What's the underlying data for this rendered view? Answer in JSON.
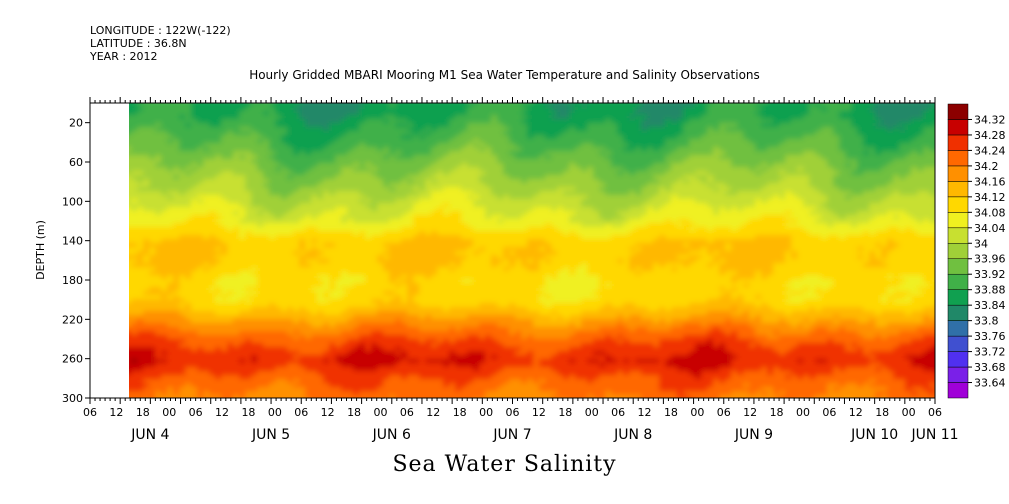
{
  "header": {
    "longitude": "LONGITUDE : 122W(-122)",
    "latitude": "LATITUDE : 36.8N",
    "year": "YEAR : 2012"
  },
  "chart_data": {
    "type": "heatmap",
    "title": "Hourly Gridded MBARI Mooring M1 Sea Water Temperature and Salinity Observations",
    "subtitle": "Sea Water Salinity",
    "ylabel": "DEPTH (m)",
    "xlabel": "",
    "ylim": [
      300,
      0
    ],
    "yticks": [
      20,
      60,
      100,
      140,
      180,
      220,
      260,
      300
    ],
    "x_hour_ticks": [
      "06",
      "12",
      "18",
      "00",
      "06",
      "12",
      "18",
      "00",
      "06",
      "12",
      "18",
      "00",
      "06",
      "12",
      "18",
      "00",
      "06",
      "12",
      "18",
      "00",
      "06",
      "12",
      "18",
      "00",
      "06",
      "12",
      "18",
      "00",
      "06",
      "12",
      "18",
      "00",
      "06"
    ],
    "x_day_labels": [
      "JUN  4",
      "JUN  5",
      "JUN  6",
      "JUN  7",
      "JUN  8",
      "JUN  9",
      "JUN 10",
      "JUN 11"
    ],
    "x_day_positions_hours": [
      12,
      36,
      60,
      84,
      108,
      132,
      156,
      168
    ],
    "x_range_hours": [
      0,
      168
    ],
    "data_start_hours": 7,
    "colorbar_levels": [
      33.64,
      33.68,
      33.72,
      33.76,
      33.8,
      33.84,
      33.88,
      33.92,
      33.96,
      34,
      34.04,
      34.08,
      34.12,
      34.16,
      34.2,
      34.24,
      34.28,
      34.32
    ],
    "colorbar_labels": [
      "34.32",
      "34.28",
      "34.24",
      "34.2",
      "34.16",
      "34.12",
      "34.08",
      "34.04",
      "34",
      "33.96",
      "33.92",
      "33.88",
      "33.84",
      "33.8",
      "33.76",
      "33.72",
      "33.68",
      "33.64"
    ],
    "colors": [
      "#a000d8",
      "#7a20e8",
      "#5030f0",
      "#4050d0",
      "#3070a8",
      "#208868",
      "#10a050",
      "#40b048",
      "#70c040",
      "#a0d038",
      "#c8e030",
      "#f0f020",
      "#ffd800",
      "#ffb800",
      "#ff9000",
      "#ff6800",
      "#f03000",
      "#c80000",
      "#8c0000"
    ],
    "depth_profile": [
      {
        "depth": 8,
        "value": 33.86
      },
      {
        "depth": 20,
        "value": 33.88
      },
      {
        "depth": 40,
        "value": 33.91
      },
      {
        "depth": 60,
        "value": 33.95
      },
      {
        "depth": 80,
        "value": 33.98
      },
      {
        "depth": 100,
        "value": 34.02
      },
      {
        "depth": 120,
        "value": 34.06
      },
      {
        "depth": 140,
        "value": 34.12
      },
      {
        "depth": 160,
        "value": 34.12
      },
      {
        "depth": 180,
        "value": 34.09
      },
      {
        "depth": 200,
        "value": 34.1
      },
      {
        "depth": 220,
        "value": 34.17
      },
      {
        "depth": 240,
        "value": 34.24
      },
      {
        "depth": 260,
        "value": 34.28
      },
      {
        "depth": 280,
        "value": 34.23
      },
      {
        "depth": 300,
        "value": 34.2
      }
    ]
  }
}
